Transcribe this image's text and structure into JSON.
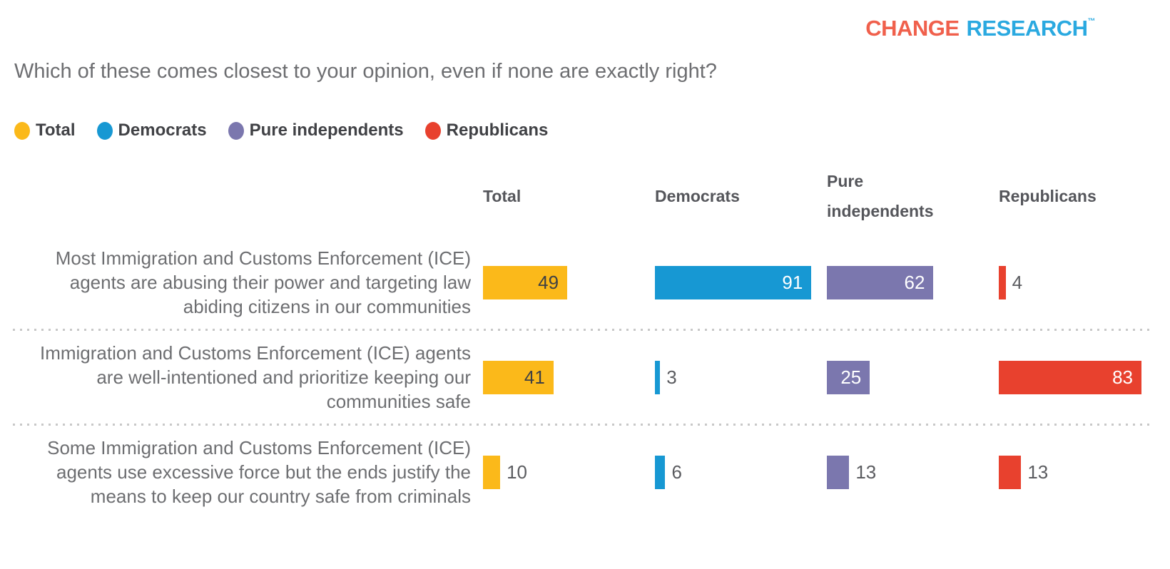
{
  "logo": {
    "change": "CHANGE",
    "research": "RESEARCH",
    "tm": "™",
    "change_color": "#f0604c",
    "research_color": "#2aa9e0"
  },
  "chart_data": {
    "type": "bar",
    "orientation": "horizontal",
    "title": "Which of these comes closest to your opinion, even if none are exactly right?",
    "xlabel": "",
    "ylabel": "",
    "xlim": [
      0,
      100
    ],
    "value_unit": "percent",
    "grid": false,
    "legend_position": "top",
    "inside_label_min_value": 20,
    "categories": [
      "Most Immigration and Customs Enforcement (ICE) agents are abusing their power and targeting law abiding citizens in our communities",
      "Immigration and Customs Enforcement (ICE) agents are well-intentioned and prioritize keeping our communities safe",
      "Some Immigration and Customs Enforcement (ICE) agents use excessive force but the ends justify the means to keep our country safe from criminals"
    ],
    "series": [
      {
        "name": "Total",
        "color": "#fbb91a",
        "value_text_color": "#3e4044",
        "values": [
          49,
          41,
          10
        ]
      },
      {
        "name": "Democrats",
        "color": "#1798d3",
        "value_text_color": "#ffffff",
        "values": [
          91,
          3,
          6
        ]
      },
      {
        "name": "Pure independents",
        "color": "#7b77ae",
        "value_text_color": "#ffffff",
        "values": [
          62,
          25,
          13
        ]
      },
      {
        "name": "Republicans",
        "color": "#e8412e",
        "value_text_color": "#ffffff",
        "values": [
          4,
          83,
          13
        ]
      }
    ]
  }
}
